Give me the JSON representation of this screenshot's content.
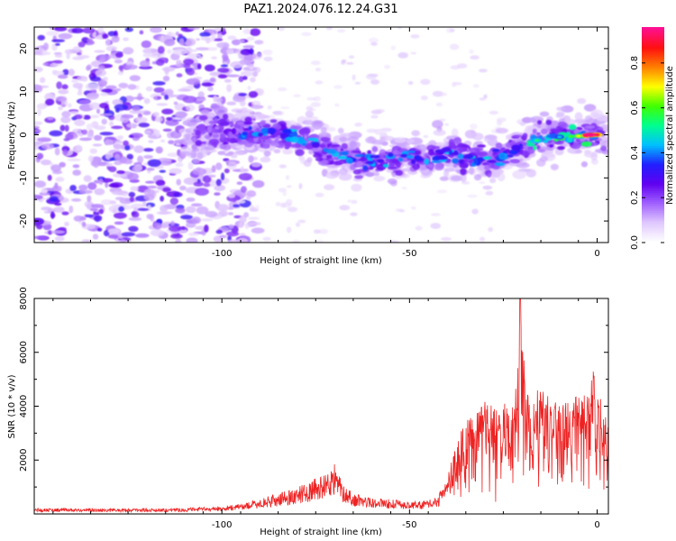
{
  "title": "PAZ1.2024.076.12.24.G31",
  "colors": {
    "snr_line": "#ee2222",
    "colormap": [
      "#ffffff",
      "#e0c8ff",
      "#a060ff",
      "#6000f0",
      "#2020ff",
      "#00c0ff",
      "#00ff90",
      "#40ff00",
      "#ffff00",
      "#ff8000",
      "#ff1010",
      "#ff1090"
    ]
  },
  "chart_data": [
    {
      "type": "heatmap",
      "title": "PAZ1.2024.076.12.24.G31",
      "xlabel": "Height of straight line (km)",
      "ylabel": "Frequency (Hz)",
      "xlim": [
        -150,
        3
      ],
      "ylim": [
        -25,
        25
      ],
      "xticks": [
        -100,
        -50,
        0
      ],
      "yticks": [
        -20,
        -10,
        0,
        10,
        20
      ],
      "colorbar": {
        "label": "Normalized spectral amplitude",
        "range": [
          0,
          0.96
        ],
        "ticks": [
          "0.0",
          "0.2",
          "0.4",
          "0.6",
          "0.8"
        ],
        "tick_values": [
          0.0,
          0.2,
          0.4,
          0.6,
          0.8
        ]
      },
      "ridge": [
        {
          "h": -105,
          "f": 0.5
        },
        {
          "h": -95,
          "f": 0.3
        },
        {
          "h": -90,
          "f": 0.0
        },
        {
          "h": -85,
          "f": 0.0
        },
        {
          "h": -80,
          "f": -1.0
        },
        {
          "h": -75,
          "f": -2.0
        },
        {
          "h": -70,
          "f": -4.0
        },
        {
          "h": -65,
          "f": -5.5
        },
        {
          "h": -60,
          "f": -6.5
        },
        {
          "h": -55,
          "f": -5.5
        },
        {
          "h": -50,
          "f": -5.0
        },
        {
          "h": -45,
          "f": -6.5
        },
        {
          "h": -40,
          "f": -4.5
        },
        {
          "h": -35,
          "f": -5.0
        },
        {
          "h": -30,
          "f": -6.0
        },
        {
          "h": -25,
          "f": -5.0
        },
        {
          "h": -20,
          "f": -2.5
        },
        {
          "h": -15,
          "f": -1.0
        },
        {
          "h": -10,
          "f": -0.5
        },
        {
          "h": -5,
          "f": -0.3
        },
        {
          "h": 0,
          "f": 0.0
        },
        {
          "h": 3,
          "f": 0.5
        }
      ],
      "peak_amplitude_near": {
        "h": -2,
        "f": 0.0,
        "amplitude": 0.95
      }
    },
    {
      "type": "line",
      "xlabel": "Height of straight line (km)",
      "ylabel": "SNR (10 * v/v)",
      "xlim": [
        -150,
        3
      ],
      "ylim": [
        0,
        8000
      ],
      "xticks": [
        -100,
        -50,
        0
      ],
      "yticks": [
        2000,
        4000,
        6000,
        8000
      ],
      "series": [
        {
          "envelope": {
            "x": [
              -150,
              -130,
              -110,
              -100,
              -95,
              -90,
              -85,
              -80,
              -75,
              -72,
              -70,
              -68,
              -65,
              -60,
              -55,
              -50,
              -45,
              -42,
              -40,
              -38,
              -36,
              -34,
              -32,
              -30,
              -28,
              -26,
              -24,
              -22,
              -20.5,
              -19,
              -17,
              -15,
              -12,
              -10,
              -8,
              -5,
              -3,
              -1,
              0,
              3
            ],
            "y": [
              200,
              180,
              200,
              260,
              350,
              500,
              700,
              900,
              1200,
              1400,
              1700,
              1100,
              700,
              550,
              500,
              420,
              450,
              700,
              1400,
              2400,
              3200,
              3600,
              4000,
              4300,
              4100,
              3900,
              4200,
              4000,
              8000,
              4500,
              4700,
              4800,
              4300,
              4100,
              4200,
              4400,
              4500,
              5400,
              4700,
              3600
            ]
          }
        }
      ]
    }
  ]
}
